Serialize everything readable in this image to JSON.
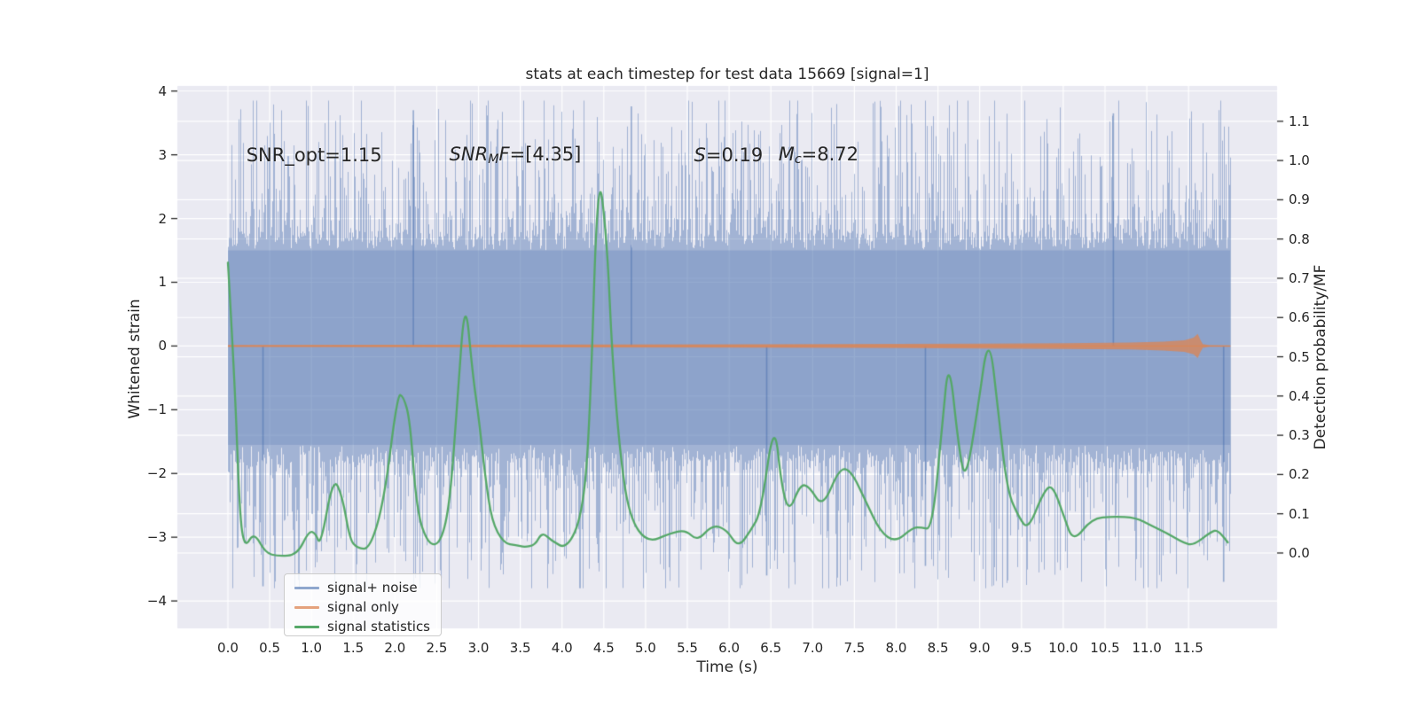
{
  "title": "stats at each timestep for test data 15669 [signal=1]",
  "axes": {
    "x": {
      "label": "Time (s)",
      "ticks": [
        {
          "v": 0.0,
          "label": "0.0"
        },
        {
          "v": 0.5,
          "label": "0.5"
        },
        {
          "v": 1.0,
          "label": "1.0"
        },
        {
          "v": 1.5,
          "label": "1.5"
        },
        {
          "v": 2.0,
          "label": "2.0"
        },
        {
          "v": 2.5,
          "label": "2.5"
        },
        {
          "v": 3.0,
          "label": "3.0"
        },
        {
          "v": 3.5,
          "label": "3.5"
        },
        {
          "v": 4.0,
          "label": "4.0"
        },
        {
          "v": 4.5,
          "label": "4.5"
        },
        {
          "v": 5.0,
          "label": "5.0"
        },
        {
          "v": 5.5,
          "label": "5.5"
        },
        {
          "v": 6.0,
          "label": "6.0"
        },
        {
          "v": 6.5,
          "label": "6.5"
        },
        {
          "v": 7.0,
          "label": "7.0"
        },
        {
          "v": 7.5,
          "label": "7.5"
        },
        {
          "v": 8.0,
          "label": "8.0"
        },
        {
          "v": 8.5,
          "label": "8.5"
        },
        {
          "v": 9.0,
          "label": "9.0"
        },
        {
          "v": 9.5,
          "label": "9.5"
        },
        {
          "v": 10.0,
          "label": "10.0"
        },
        {
          "v": 10.5,
          "label": "10.5"
        },
        {
          "v": 11.0,
          "label": "11.0"
        },
        {
          "v": 11.5,
          "label": "11.5"
        }
      ]
    },
    "left": {
      "label": "Whitened strain",
      "ticks": [
        {
          "v": 4,
          "label": "4"
        },
        {
          "v": 3,
          "label": "3"
        },
        {
          "v": 2,
          "label": "2"
        },
        {
          "v": 1,
          "label": "1"
        },
        {
          "v": 0,
          "label": "0"
        },
        {
          "v": -1,
          "label": "−1"
        },
        {
          "v": -2,
          "label": "−2"
        },
        {
          "v": -3,
          "label": "−3"
        },
        {
          "v": -4,
          "label": "−4"
        }
      ]
    },
    "right": {
      "label": "Detection probability/MF",
      "ticks": [
        {
          "v": 1.1,
          "label": "1.1"
        },
        {
          "v": 1.0,
          "label": "1.0"
        },
        {
          "v": 0.9,
          "label": "0.9"
        },
        {
          "v": 0.8,
          "label": "0.8"
        },
        {
          "v": 0.7,
          "label": "0.7"
        },
        {
          "v": 0.6,
          "label": "0.6"
        },
        {
          "v": 0.5,
          "label": "0.5"
        },
        {
          "v": 0.4,
          "label": "0.4"
        },
        {
          "v": 0.3,
          "label": "0.3"
        },
        {
          "v": 0.2,
          "label": "0.2"
        },
        {
          "v": 0.1,
          "label": "0.1"
        },
        {
          "v": 0.0,
          "label": "0.0"
        }
      ]
    }
  },
  "annotations": [
    {
      "id": "snr-opt",
      "t": 0.22,
      "v": 3.0,
      "parts": [
        {
          "text": "SNR_opt=1.15",
          "style": "plain"
        }
      ]
    },
    {
      "id": "snr-mf",
      "t": 2.65,
      "v": 3.0,
      "parts": [
        {
          "text": "SNR",
          "style": "italic"
        },
        {
          "text": "M",
          "style": "sub"
        },
        {
          "text": "F",
          "style": "italic"
        },
        {
          "text": "=[4.35]",
          "style": "plain"
        }
      ]
    },
    {
      "id": "s-stat",
      "t": 5.58,
      "v": 3.0,
      "parts": [
        {
          "text": "S",
          "style": "italic"
        },
        {
          "text": "=0.19",
          "style": "plain"
        }
      ]
    },
    {
      "id": "m-chirp",
      "t": 6.59,
      "v": 3.0,
      "parts": [
        {
          "text": "M",
          "style": "italic"
        },
        {
          "text": "c",
          "style": "sub"
        },
        {
          "text": "=8.72",
          "style": "plain"
        }
      ]
    }
  ],
  "legend": {
    "items": [
      {
        "label": "signal+ noise",
        "color": "rgba(76,114,176,0.62)"
      },
      {
        "label": "signal only",
        "color": "rgba(221,132,82,0.75)"
      },
      {
        "label": "signal statistics",
        "color": "#55a868"
      }
    ]
  },
  "chart_data": {
    "type": "line",
    "title": "stats at each timestep for test data 15669 [signal=1]",
    "xlabel": "Time (s)",
    "ylabel_left": "Whitened strain",
    "ylabel_right": "Detection probability/MF",
    "xlim": [
      -0.605,
      12.56
    ],
    "ylim_left": [
      -4.43,
      4.08
    ],
    "ylim_right": [
      -0.192,
      1.19
    ],
    "grid": true,
    "background_color": "#eaeaf2",
    "grid_color": "#ffffff",
    "series": [
      {
        "name": "signal+ noise",
        "axis": "left",
        "type": "noise_band",
        "color": "#4c72b0",
        "t_range": [
          0,
          12.0
        ],
        "seed": 15669,
        "core_halfwidth": 1.55,
        "spike_max": 3.85,
        "notable_spikes": [
          {
            "t": 0.42,
            "v": -3.77
          },
          {
            "t": 2.22,
            "v": 3.7
          },
          {
            "t": 4.83,
            "v": 3.76
          },
          {
            "t": 6.45,
            "v": -3.6
          },
          {
            "t": 8.35,
            "v": -3.45
          },
          {
            "t": 10.6,
            "v": 3.65
          },
          {
            "t": 11.92,
            "v": -3.7
          }
        ]
      },
      {
        "name": "signal only",
        "axis": "left",
        "type": "envelope",
        "color": "#dd8452",
        "center": 0.0,
        "points": [
          [
            0,
            0.015
          ],
          [
            2,
            0.018
          ],
          [
            4,
            0.022
          ],
          [
            6,
            0.026
          ],
          [
            8,
            0.032
          ],
          [
            9,
            0.038
          ],
          [
            10,
            0.045
          ],
          [
            10.8,
            0.055
          ],
          [
            11.2,
            0.07
          ],
          [
            11.45,
            0.09
          ],
          [
            11.56,
            0.13
          ],
          [
            11.61,
            0.19
          ],
          [
            11.64,
            0.1
          ],
          [
            11.67,
            0.03
          ],
          [
            11.75,
            0.012
          ],
          [
            12,
            0.01
          ]
        ]
      },
      {
        "name": "signal statistics",
        "axis": "right",
        "type": "line",
        "color": "#55a868",
        "points": [
          [
            0.0,
            0.74
          ],
          [
            0.08,
            0.45
          ],
          [
            0.14,
            0.1
          ],
          [
            0.2,
            0.011
          ],
          [
            0.31,
            0.054
          ],
          [
            0.45,
            0.0
          ],
          [
            0.6,
            -0.008
          ],
          [
            0.83,
            -0.005
          ],
          [
            0.97,
            0.057
          ],
          [
            1.05,
            0.05
          ],
          [
            1.11,
            0.017
          ],
          [
            1.26,
            0.195
          ],
          [
            1.37,
            0.145
          ],
          [
            1.46,
            0.034
          ],
          [
            1.55,
            0.012
          ],
          [
            1.7,
            0.01
          ],
          [
            1.87,
            0.133
          ],
          [
            2.03,
            0.405
          ],
          [
            2.1,
            0.4
          ],
          [
            2.18,
            0.34
          ],
          [
            2.26,
            0.106
          ],
          [
            2.4,
            0.02
          ],
          [
            2.55,
            0.025
          ],
          [
            2.66,
            0.13
          ],
          [
            2.75,
            0.4
          ],
          [
            2.84,
            0.66
          ],
          [
            2.93,
            0.455
          ],
          [
            3.0,
            0.35
          ],
          [
            3.08,
            0.195
          ],
          [
            3.16,
            0.08
          ],
          [
            3.3,
            0.025
          ],
          [
            3.45,
            0.02
          ],
          [
            3.55,
            0.015
          ],
          [
            3.68,
            0.02
          ],
          [
            3.76,
            0.054
          ],
          [
            3.88,
            0.03
          ],
          [
            4.06,
            0.01
          ],
          [
            4.24,
            0.095
          ],
          [
            4.33,
            0.31
          ],
          [
            4.43,
            1.0
          ],
          [
            4.54,
            0.79
          ],
          [
            4.6,
            0.5
          ],
          [
            4.7,
            0.24
          ],
          [
            4.81,
            0.09
          ],
          [
            5.02,
            0.025
          ],
          [
            5.29,
            0.05
          ],
          [
            5.48,
            0.059
          ],
          [
            5.62,
            0.03
          ],
          [
            5.8,
            0.072
          ],
          [
            5.97,
            0.06
          ],
          [
            6.11,
            0.013
          ],
          [
            6.26,
            0.058
          ],
          [
            6.38,
            0.103
          ],
          [
            6.54,
            0.344
          ],
          [
            6.63,
            0.167
          ],
          [
            6.72,
            0.103
          ],
          [
            6.85,
            0.175
          ],
          [
            6.96,
            0.17
          ],
          [
            7.12,
            0.114
          ],
          [
            7.32,
            0.217
          ],
          [
            7.46,
            0.21
          ],
          [
            7.64,
            0.13
          ],
          [
            7.81,
            0.054
          ],
          [
            7.99,
            0.027
          ],
          [
            8.2,
            0.065
          ],
          [
            8.3,
            0.065
          ],
          [
            8.43,
            0.06
          ],
          [
            8.55,
            0.32
          ],
          [
            8.63,
            0.505
          ],
          [
            8.75,
            0.266
          ],
          [
            8.83,
            0.181
          ],
          [
            8.97,
            0.357
          ],
          [
            9.11,
            0.571
          ],
          [
            9.23,
            0.343
          ],
          [
            9.33,
            0.158
          ],
          [
            9.47,
            0.09
          ],
          [
            9.58,
            0.059
          ],
          [
            9.76,
            0.154
          ],
          [
            9.87,
            0.176
          ],
          [
            10.01,
            0.092
          ],
          [
            10.12,
            0.027
          ],
          [
            10.34,
            0.088
          ],
          [
            10.6,
            0.093
          ],
          [
            10.87,
            0.09
          ],
          [
            11.05,
            0.07
          ],
          [
            11.23,
            0.052
          ],
          [
            11.45,
            0.025
          ],
          [
            11.56,
            0.02
          ],
          [
            11.77,
            0.054
          ],
          [
            11.85,
            0.059
          ],
          [
            11.97,
            0.027
          ]
        ]
      }
    ]
  }
}
